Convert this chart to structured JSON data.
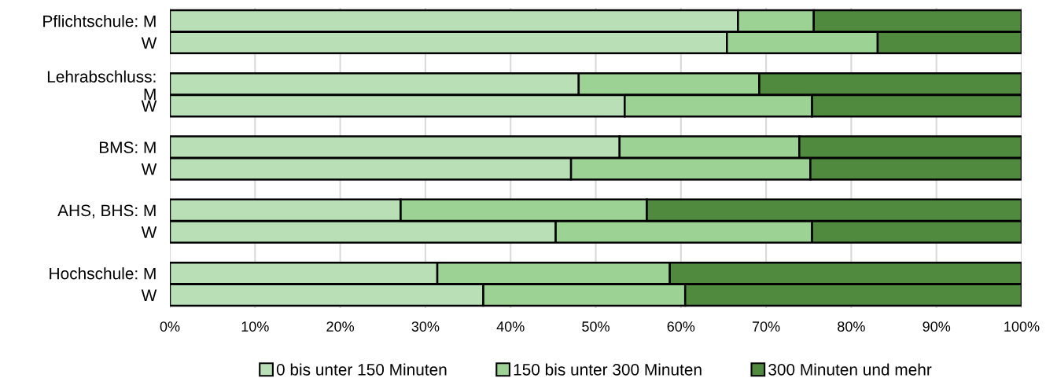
{
  "chart_data": {
    "type": "bar",
    "orientation": "horizontal",
    "stacked": true,
    "categories": [
      "Pflichtschule: M",
      "W",
      "Lehrabschluss:\nM",
      "W",
      "BMS: M",
      "W",
      "AHS, BHS: M",
      "W",
      "Hochschule: M",
      "W"
    ],
    "series": [
      {
        "name": "0 bis unter 150 Minuten",
        "color": "#b9dfb7",
        "values": [
          66.7,
          65.4,
          48.0,
          53.4,
          52.8,
          47.1,
          27.1,
          45.3,
          31.4,
          36.8
        ]
      },
      {
        "name": "150 bis unter 300 Minuten",
        "color": "#9cd293",
        "values": [
          8.9,
          17.7,
          21.2,
          22.0,
          21.1,
          28.1,
          28.9,
          30.1,
          27.3,
          23.7
        ]
      },
      {
        "name": "300 Minuten und mehr",
        "color": "#4f8a3e",
        "values": [
          24.4,
          16.9,
          30.8,
          24.6,
          26.1,
          24.8,
          44.0,
          24.6,
          41.3,
          39.5
        ]
      }
    ],
    "xlim": [
      0,
      100
    ],
    "xticks": [
      {
        "value": 0,
        "label": "0%"
      },
      {
        "value": 10,
        "label": "10%"
      },
      {
        "value": 20,
        "label": "20%"
      },
      {
        "value": 30,
        "label": "30%"
      },
      {
        "value": 40,
        "label": "40%"
      },
      {
        "value": 50,
        "label": "50%"
      },
      {
        "value": 60,
        "label": "60%"
      },
      {
        "value": 70,
        "label": "70%"
      },
      {
        "value": 80,
        "label": "80%"
      },
      {
        "value": 90,
        "label": "90%"
      },
      {
        "value": 100,
        "label": "100%"
      }
    ],
    "grid": "x",
    "legend": "bottom"
  }
}
